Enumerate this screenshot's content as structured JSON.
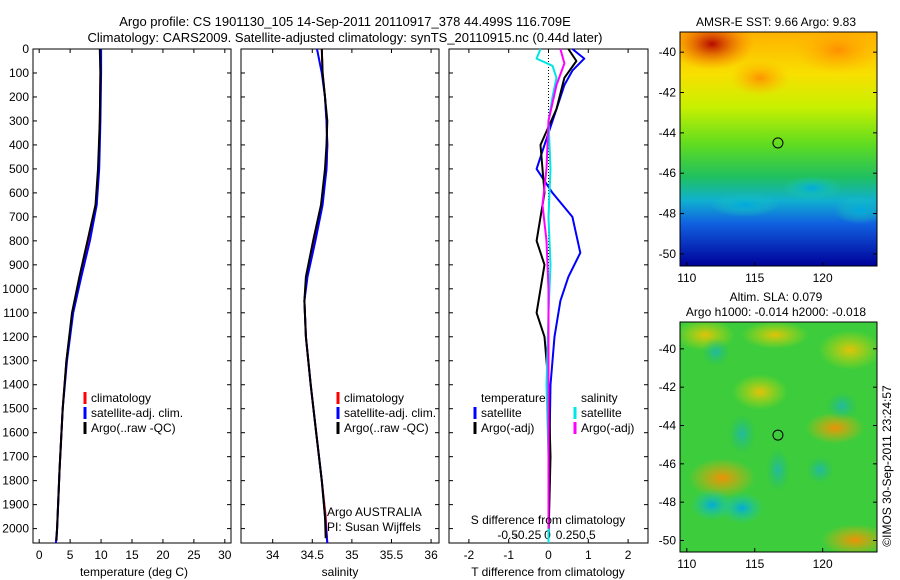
{
  "header": {
    "line1": "Argo profile: CS 1901130_105 14-Sep-2011 20110917_378 44.499S 116.709E",
    "line2": "Climatology: CARS2009. Satellite-adjusted climatology: synTS_20110915.nc (0.44d later)"
  },
  "colors": {
    "climatology": "#ff0000",
    "satellite": "#0000ff",
    "argo": "#000000",
    "salinity_satellite": "#00e5e5",
    "salinity_argo": "#ff00ff"
  },
  "chart_data": [
    {
      "id": "temperature",
      "type": "line",
      "xlabel": "temperature (deg C)",
      "xlim": [
        -1,
        31
      ],
      "xticks": [
        0,
        5,
        10,
        15,
        20,
        25,
        30
      ],
      "xtick_labels": [
        "0",
        "5",
        "10",
        "15",
        "20",
        "25",
        "30"
      ],
      "ylim": [
        0,
        2060
      ],
      "yticks": [
        0,
        100,
        200,
        300,
        400,
        500,
        600,
        700,
        800,
        900,
        1000,
        1100,
        1200,
        1300,
        1400,
        1500,
        1600,
        1700,
        1800,
        1900,
        2000
      ],
      "ytick_labels": [
        "0",
        "100",
        "200",
        "300",
        "400",
        "500",
        "600",
        "700",
        "800",
        "900",
        "1000",
        "1100",
        "1200",
        "1300",
        "1400",
        "1500",
        "1600",
        "1700",
        "1800",
        "1900",
        "2000"
      ],
      "legend": [
        "climatology",
        "satellite-adj. clim.",
        "Argo(..raw -QC)"
      ],
      "series": [
        {
          "name": "climatology",
          "color": "#ff0000",
          "points": [
            [
              9.9,
              0
            ],
            [
              9.9,
              100
            ],
            [
              9.8,
              300
            ],
            [
              9.6,
              500
            ],
            [
              9.2,
              650
            ],
            [
              8.0,
              800
            ],
            [
              6.6,
              950
            ],
            [
              5.4,
              1100
            ],
            [
              4.4,
              1300
            ],
            [
              3.8,
              1500
            ],
            [
              3.3,
              1750
            ],
            [
              2.9,
              2000
            ],
            [
              2.7,
              2060
            ]
          ]
        },
        {
          "name": "satellite-adj. clim.",
          "color": "#0000ff",
          "points": [
            [
              10.0,
              0
            ],
            [
              10.0,
              100
            ],
            [
              9.9,
              300
            ],
            [
              9.7,
              500
            ],
            [
              9.3,
              650
            ],
            [
              8.2,
              800
            ],
            [
              6.8,
              950
            ],
            [
              5.5,
              1100
            ],
            [
              4.5,
              1300
            ],
            [
              3.8,
              1500
            ],
            [
              3.3,
              1750
            ],
            [
              2.9,
              2000
            ],
            [
              2.7,
              2060
            ]
          ]
        },
        {
          "name": "Argo(..raw -QC)",
          "color": "#000000",
          "points": [
            [
              9.8,
              0
            ],
            [
              9.9,
              100
            ],
            [
              9.8,
              300
            ],
            [
              9.5,
              500
            ],
            [
              9.1,
              650
            ],
            [
              7.8,
              800
            ],
            [
              6.5,
              950
            ],
            [
              5.3,
              1100
            ],
            [
              4.4,
              1300
            ],
            [
              3.8,
              1500
            ],
            [
              3.3,
              1750
            ],
            [
              2.9,
              2000
            ],
            [
              2.8,
              2050
            ]
          ]
        }
      ]
    },
    {
      "id": "salinity",
      "type": "line",
      "xlabel": "salinity",
      "xlim": [
        33.6,
        36.1
      ],
      "xticks": [
        34,
        34.5,
        35,
        35.5,
        36
      ],
      "xtick_labels": [
        "34",
        "34.5",
        "35",
        "35.5",
        "36"
      ],
      "ylim": [
        0,
        2060
      ],
      "legend": [
        "climatology",
        "satellite-adj. clim.",
        "Argo(..raw -QC)"
      ],
      "annotation": [
        "Argo AUSTRALIA",
        "PI: Susan Wijffels"
      ],
      "series": [
        {
          "name": "climatology",
          "color": "#ff0000",
          "points": [
            [
              34.62,
              0
            ],
            [
              34.63,
              100
            ],
            [
              34.66,
              200
            ],
            [
              34.68,
              300
            ],
            [
              34.69,
              400
            ],
            [
              34.68,
              500
            ],
            [
              34.62,
              650
            ],
            [
              34.52,
              800
            ],
            [
              34.43,
              950
            ],
            [
              34.4,
              1050
            ],
            [
              34.42,
              1200
            ],
            [
              34.48,
              1400
            ],
            [
              34.55,
              1600
            ],
            [
              34.62,
              1800
            ],
            [
              34.67,
              1950
            ],
            [
              34.69,
              2060
            ]
          ]
        },
        {
          "name": "satellite-adj. clim.",
          "color": "#0000ff",
          "points": [
            [
              34.56,
              0
            ],
            [
              34.62,
              100
            ],
            [
              34.66,
              200
            ],
            [
              34.68,
              300
            ],
            [
              34.69,
              400
            ],
            [
              34.68,
              500
            ],
            [
              34.63,
              650
            ],
            [
              34.54,
              800
            ],
            [
              34.44,
              950
            ],
            [
              34.4,
              1050
            ],
            [
              34.42,
              1200
            ],
            [
              34.48,
              1400
            ],
            [
              34.55,
              1600
            ],
            [
              34.62,
              1800
            ],
            [
              34.66,
              1950
            ],
            [
              34.69,
              2060
            ]
          ]
        },
        {
          "name": "Argo(..raw -QC)",
          "color": "#000000",
          "points": [
            [
              34.62,
              0
            ],
            [
              34.63,
              100
            ],
            [
              34.66,
              200
            ],
            [
              34.69,
              300
            ],
            [
              34.68,
              400
            ],
            [
              34.66,
              500
            ],
            [
              34.61,
              650
            ],
            [
              34.51,
              800
            ],
            [
              34.42,
              950
            ],
            [
              34.4,
              1050
            ],
            [
              34.42,
              1200
            ],
            [
              34.48,
              1400
            ],
            [
              34.55,
              1600
            ],
            [
              34.62,
              1800
            ],
            [
              34.66,
              1950
            ],
            [
              34.67,
              2040
            ]
          ]
        }
      ]
    },
    {
      "id": "difference",
      "type": "line",
      "xlabel": "T difference from climatology",
      "xlabel_top": "S difference from climatology",
      "xlim": [
        -2.5,
        2.5
      ],
      "xticks": [
        -2,
        -1,
        0,
        1,
        2
      ],
      "xtick_labels": [
        "-2",
        "-1",
        "0",
        "1",
        "2"
      ],
      "xticks_top": [
        -0.5,
        -0.25,
        0,
        0.25,
        0.5
      ],
      "xtick_labels_top": [
        "-0.5",
        "-0.25",
        "0",
        "0.25",
        "0.5"
      ],
      "ylim": [
        0,
        2060
      ],
      "legend": {
        "temperature_title": "temperature",
        "temperature": [
          "satellite",
          "Argo(-adj)"
        ],
        "salinity_title": "salinity",
        "salinity": [
          "satellite",
          "Argo(-adj)"
        ]
      },
      "series": [
        {
          "name": "temperature satellite",
          "color": "#0000ff",
          "points": [
            [
              0.6,
              0
            ],
            [
              0.9,
              40
            ],
            [
              0.6,
              90
            ],
            [
              0.4,
              150
            ],
            [
              0.2,
              250
            ],
            [
              -0.1,
              400
            ],
            [
              -0.3,
              500
            ],
            [
              0.1,
              600
            ],
            [
              0.6,
              700
            ],
            [
              0.8,
              850
            ],
            [
              0.5,
              950
            ],
            [
              0.3,
              1050
            ],
            [
              0.15,
              1200
            ],
            [
              0.05,
              1400
            ],
            [
              0.02,
              1700
            ],
            [
              0.0,
              2050
            ]
          ]
        },
        {
          "name": "temperature Argo(-adj)",
          "color": "#000000",
          "points": [
            [
              0.5,
              0
            ],
            [
              0.7,
              50
            ],
            [
              0.4,
              120
            ],
            [
              0.2,
              250
            ],
            [
              -0.2,
              400
            ],
            [
              -0.1,
              600
            ],
            [
              -0.3,
              800
            ],
            [
              -0.1,
              900
            ],
            [
              -0.3,
              1100
            ],
            [
              -0.1,
              1200
            ],
            [
              0.0,
              1400
            ],
            [
              0.05,
              1700
            ],
            [
              0.0,
              2040
            ]
          ]
        },
        {
          "name": "salinity satellite",
          "color": "#00e5e5",
          "points": [
            [
              -0.2,
              0
            ],
            [
              -0.3,
              40
            ],
            [
              0.1,
              70
            ],
            [
              0.2,
              120
            ],
            [
              0.1,
              200
            ],
            [
              0.0,
              300
            ],
            [
              0.05,
              500
            ],
            [
              0.0,
              700
            ],
            [
              0.05,
              900
            ],
            [
              0.0,
              1100
            ],
            [
              -0.05,
              1400
            ],
            [
              0.0,
              1700
            ],
            [
              0.0,
              2060
            ]
          ]
        },
        {
          "name": "salinity Argo(-adj)",
          "color": "#ff00ff",
          "points": [
            [
              0.3,
              0
            ],
            [
              0.4,
              60
            ],
            [
              0.2,
              150
            ],
            [
              0.0,
              300
            ],
            [
              -0.05,
              500
            ],
            [
              -0.15,
              650
            ],
            [
              -0.05,
              800
            ],
            [
              0.0,
              1000
            ],
            [
              0.0,
              1300
            ],
            [
              0.0,
              1600
            ],
            [
              0.0,
              2000
            ]
          ]
        }
      ]
    },
    {
      "id": "sst_map",
      "type": "heatmap",
      "title": "AMSR-E SST: 9.66 Argo: 9.83",
      "xlim": [
        109.5,
        124
      ],
      "xticks": [
        110,
        115,
        120
      ],
      "xtick_labels": [
        "110",
        "115",
        "120"
      ],
      "ylim": [
        -50.6,
        -39
      ],
      "yticks": [
        -40,
        -42,
        -44,
        -46,
        -48,
        -50
      ],
      "ytick_labels": [
        "-40",
        "-42",
        "-44",
        "-46",
        "-48",
        "-50"
      ],
      "marker": {
        "lon": 116.709,
        "lat": -44.499
      }
    },
    {
      "id": "sla_map",
      "type": "heatmap",
      "title_line1": "Altim. SLA: 0.079",
      "title_line2": "Argo h1000: -0.014 h2000: -0.018",
      "xlim": [
        109.5,
        124
      ],
      "xticks": [
        110,
        115,
        120
      ],
      "xtick_labels": [
        "110",
        "115",
        "120"
      ],
      "ylim": [
        -50.6,
        -38.6
      ],
      "yticks": [
        -40,
        -42,
        -44,
        -46,
        -48,
        -50
      ],
      "ytick_labels": [
        "-40",
        "-42",
        "-44",
        "-46",
        "-48",
        "-50"
      ],
      "marker": {
        "lon": 116.709,
        "lat": -44.499
      }
    }
  ],
  "footer": {
    "credit": "©IMOS 30-Sep-2011 23:24:57"
  }
}
